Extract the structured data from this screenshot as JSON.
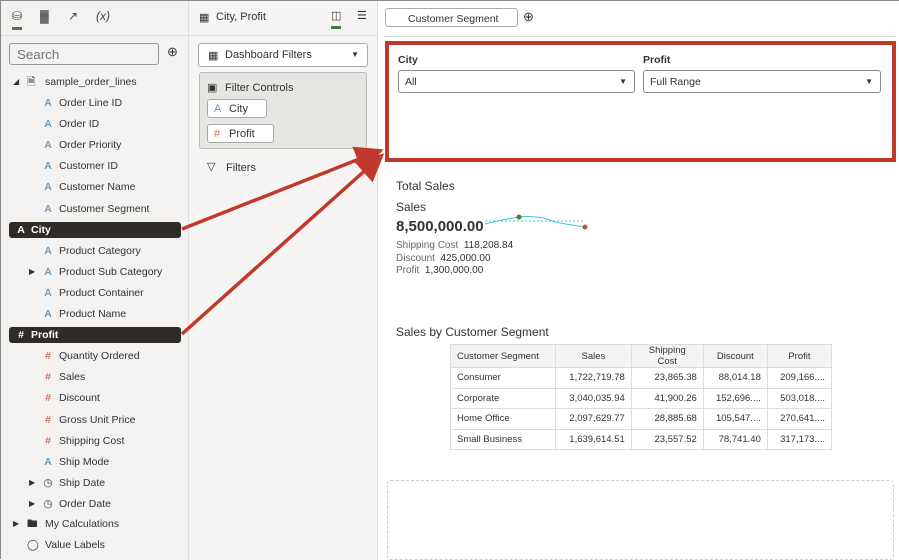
{
  "left_tabs": [
    "data-icon",
    "visualizations-icon",
    "analytics-icon",
    "(x)"
  ],
  "search": {
    "placeholder": "Search"
  },
  "dataset": "sample_order_lines",
  "fields": [
    {
      "label": "Order Line ID",
      "type": "A"
    },
    {
      "label": "Order ID",
      "type": "A"
    },
    {
      "label": "Order Priority",
      "type": "A"
    },
    {
      "label": "Customer ID",
      "type": "A"
    },
    {
      "label": "Customer Name",
      "type": "A"
    },
    {
      "label": "Customer Segment",
      "type": "A"
    },
    {
      "label": "City",
      "type": "A",
      "selected": true
    },
    {
      "label": "Product Category",
      "type": "A"
    },
    {
      "label": "Product Sub Category",
      "type": "A",
      "expandable": true
    },
    {
      "label": "Product Container",
      "type": "A"
    },
    {
      "label": "Product Name",
      "type": "A"
    },
    {
      "label": "Profit",
      "type": "#",
      "selected": true
    },
    {
      "label": "Quantity Ordered",
      "type": "#"
    },
    {
      "label": "Sales",
      "type": "#"
    },
    {
      "label": "Discount",
      "type": "#"
    },
    {
      "label": "Gross Unit Price",
      "type": "#"
    },
    {
      "label": "Shipping Cost",
      "type": "#"
    },
    {
      "label": "Ship Mode",
      "type": "A"
    },
    {
      "label": "Ship Date",
      "type": "clock",
      "expandable": true
    },
    {
      "label": "Order Date",
      "type": "clock",
      "expandable": true
    }
  ],
  "my_calculations": "My Calculations",
  "value_labels": "Value Labels",
  "mid": {
    "title": "City, Profit",
    "dropdown": "Dashboard Filters",
    "filter_controls": "Filter Controls",
    "chips": [
      {
        "label": "City",
        "type": "A"
      },
      {
        "label": "Profit",
        "type": "#"
      }
    ],
    "filters": "Filters"
  },
  "canvas_tab": "Customer Segment",
  "filters_panel": {
    "city_label": "City",
    "city_value": "All",
    "profit_label": "Profit",
    "profit_value": "Full Range"
  },
  "tile": {
    "title": "Total Sales",
    "measure": "Sales",
    "value": "8,500,000.00",
    "secondary": [
      {
        "label": "Shipping Cost",
        "value": "118,208.84"
      },
      {
        "label": "Discount",
        "value": "425,000.00"
      },
      {
        "label": "Profit",
        "value": "1,300,000.00"
      }
    ]
  },
  "table": {
    "title": "Sales by Customer Segment",
    "headers": [
      "Customer Segment",
      "Sales",
      "Shipping Cost",
      "Discount",
      "Profit"
    ],
    "rows": [
      [
        "Consumer",
        "1,722,719.78",
        "23,865.38",
        "88,014.18",
        "209,166...."
      ],
      [
        "Corporate",
        "3,040,035.94",
        "41,900.26",
        "152,696....",
        "503,018...."
      ],
      [
        "Home Office",
        "2,097,629.77",
        "28,885.68",
        "105,547....",
        "270,641...."
      ],
      [
        "Small Business",
        "1,639,614.51",
        "23,557.52",
        "78,741.40",
        "317,173...."
      ]
    ]
  },
  "colors": {
    "highlight": "#c0392b",
    "selected": "#2f2c28",
    "accent": "#4a7a45"
  }
}
